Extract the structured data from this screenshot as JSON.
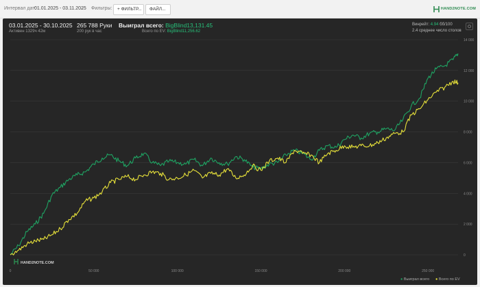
{
  "toolbar": {
    "interval_label": "Интервал дат:",
    "interval_value": "01.01.2025 - 03.11.2025",
    "filters_label": "Фильтры:",
    "filter_button": "ФИЛЬТР...",
    "file_button": "ФАЙЛ...",
    "logo_text": "HAND2NOTE.COM"
  },
  "stats": {
    "date_range": "03.01.2025 - 30.10.2025",
    "active": "Активен 1329ч 42м",
    "hands": "265 788 Руки",
    "hands_rate": "200 рук в час",
    "won_label": "Выиграл всего: ",
    "won_value": "BigBlind13,131.45",
    "ev_label": "Всего по EV: ",
    "ev_value": "BigBlind11,256.62",
    "winrate_label": "Винрейт: ",
    "winrate_value": "4.94",
    "winrate_unit": " бб/100",
    "tables": "2.4 среднее число столов"
  },
  "watermark": "HAND2NOTE.COM",
  "legend": {
    "won": "Выиграл всего",
    "ev": "Всего по EV"
  },
  "colors": {
    "won": "#1fa463",
    "ev": "#e8e23a",
    "grid": "#3a3a3a",
    "background": "#262626"
  },
  "chart_data": {
    "type": "line",
    "x_ticks": [
      "0",
      "50 000",
      "100 000",
      "150 000",
      "200 000",
      "250 000"
    ],
    "y_ticks": [
      "0",
      "2 000",
      "4 000",
      "6 000",
      "8 000",
      "10 000",
      "12 000",
      "14 000"
    ],
    "xlim": [
      0,
      268000
    ],
    "ylim": [
      -300,
      14000
    ],
    "grid": true,
    "legend_position": "bottom-right",
    "series": [
      {
        "name": "Выиграл всего",
        "x": [
          0,
          5000,
          10000,
          15000,
          20000,
          25000,
          30000,
          35000,
          40000,
          45000,
          50000,
          55000,
          60000,
          65000,
          70000,
          75000,
          80000,
          85000,
          90000,
          95000,
          100000,
          105000,
          110000,
          115000,
          120000,
          125000,
          130000,
          135000,
          140000,
          145000,
          150000,
          155000,
          160000,
          165000,
          170000,
          175000,
          180000,
          185000,
          190000,
          195000,
          200000,
          205000,
          210000,
          215000,
          220000,
          225000,
          230000,
          235000,
          240000,
          245000,
          250000,
          255000,
          260000,
          265000,
          268000
        ],
        "values": [
          0,
          600,
          1500,
          2000,
          2700,
          3900,
          4400,
          4900,
          5200,
          5400,
          5900,
          6300,
          6500,
          6100,
          5800,
          6300,
          6600,
          6000,
          5800,
          6100,
          6000,
          5900,
          6200,
          5800,
          6300,
          6000,
          5900,
          6400,
          6200,
          5700,
          5600,
          5900,
          6000,
          6500,
          6800,
          6600,
          6200,
          6800,
          7100,
          7000,
          7500,
          7800,
          7600,
          7900,
          8000,
          8200,
          8100,
          8800,
          9700,
          10200,
          11500,
          12100,
          12300,
          12700,
          13100
        ]
      },
      {
        "name": "Всего по EV",
        "x": [
          0,
          5000,
          10000,
          15000,
          20000,
          25000,
          30000,
          35000,
          40000,
          45000,
          50000,
          55000,
          60000,
          65000,
          70000,
          75000,
          80000,
          85000,
          90000,
          95000,
          100000,
          105000,
          110000,
          115000,
          120000,
          125000,
          130000,
          135000,
          140000,
          145000,
          150000,
          155000,
          160000,
          165000,
          170000,
          175000,
          180000,
          185000,
          190000,
          195000,
          200000,
          205000,
          210000,
          215000,
          220000,
          225000,
          230000,
          235000,
          240000,
          245000,
          250000,
          255000,
          260000,
          265000,
          268000
        ],
        "values": [
          0,
          300,
          700,
          900,
          1000,
          1300,
          1700,
          2300,
          2700,
          3500,
          3700,
          4100,
          4700,
          4900,
          5100,
          4900,
          5200,
          5400,
          5300,
          4900,
          5000,
          5200,
          5500,
          5000,
          5300,
          5200,
          5600,
          5000,
          5200,
          5800,
          5500,
          6100,
          6300,
          6000,
          6800,
          6600,
          6500,
          6000,
          6600,
          6800,
          7100,
          7000,
          7100,
          7100,
          7300,
          7600,
          7900,
          8000,
          9100,
          9500,
          10100,
          10600,
          10900,
          11300,
          11200
        ]
      }
    ]
  }
}
